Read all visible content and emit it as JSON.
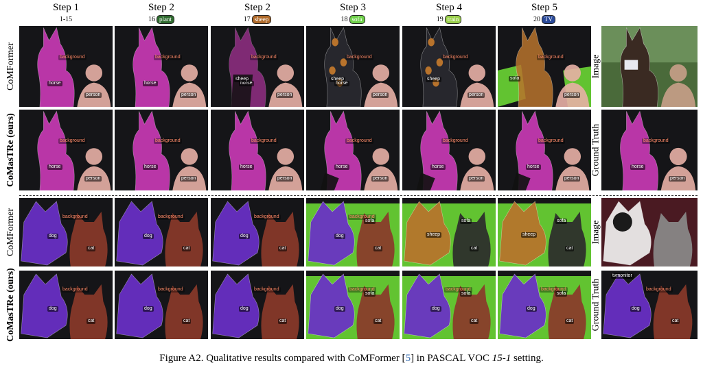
{
  "columns": [
    {
      "step": "Step 1",
      "sub": "1-15",
      "pill": "",
      "pill_color": ""
    },
    {
      "step": "Step 2",
      "sub": "16",
      "pill": "plant",
      "pill_color": "#2f6b2f"
    },
    {
      "step": "Step 2",
      "sub": "17",
      "pill": "sheep",
      "pill_color": "#b06a2a"
    },
    {
      "step": "Step 3",
      "sub": "18",
      "pill": "sofa",
      "pill_color": "#6fd14a"
    },
    {
      "step": "Step 4",
      "sub": "19",
      "pill": "train",
      "pill_color": "#9ad04a"
    },
    {
      "step": "Step 5",
      "sub": "20",
      "pill": "TV",
      "pill_color": "#2a4a9a"
    }
  ],
  "row_labels": {
    "comformer": "CoMFormer",
    "comastre": "CoMasTRe (ours)"
  },
  "right_labels": {
    "image": "Image",
    "ground_truth": "Ground Truth"
  },
  "region_labels": {
    "background": "background",
    "horse": "horse",
    "person": "person",
    "sheep": "sheep",
    "sofa": "sofa",
    "dog": "dog",
    "cat": "cat",
    "tvmonitor": "tvmonitor"
  },
  "colors": {
    "horse": "#d63cc0",
    "person": "#e8b0a6",
    "sheep": "#b8732c",
    "sofa": "#66cc33",
    "dog": "#6a30c8",
    "cat": "#8a3a2a",
    "dark": "#151518"
  },
  "caption": {
    "prefix": "Figure A2. Qualitative results compared with CoMFormer [",
    "ref": "5",
    "middle": "] in PASCAL VOC ",
    "setting": "15-1",
    "suffix": " setting."
  }
}
